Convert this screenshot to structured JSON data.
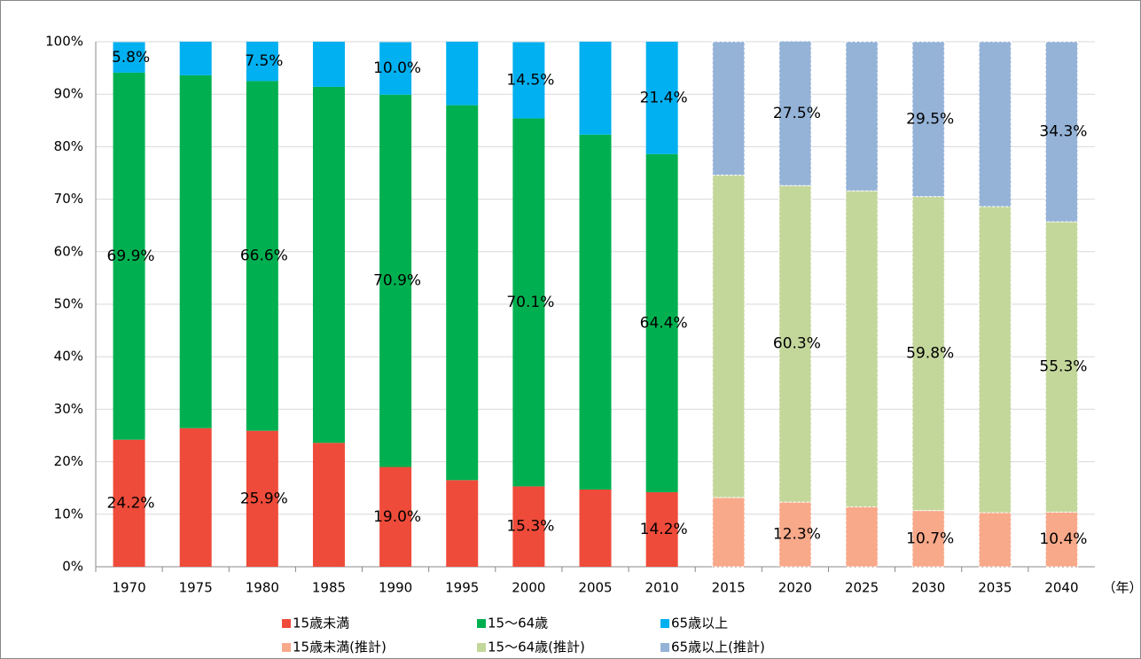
{
  "chart_data": {
    "type": "stacked_bar",
    "x_label": "（年）",
    "categories": [
      "1970",
      "1975",
      "1980",
      "1985",
      "1990",
      "1995",
      "2000",
      "2005",
      "2010",
      "2015",
      "2020",
      "2025",
      "2030",
      "2035",
      "2040"
    ],
    "ylim": [
      0,
      100
    ],
    "yticks": [
      {
        "value": 0,
        "label": "0%"
      },
      {
        "value": 10,
        "label": "10%"
      },
      {
        "value": 20,
        "label": "20%"
      },
      {
        "value": 30,
        "label": "30%"
      },
      {
        "value": 40,
        "label": "40%"
      },
      {
        "value": 50,
        "label": "50%"
      },
      {
        "value": 60,
        "label": "60%"
      },
      {
        "value": 70,
        "label": "70%"
      },
      {
        "value": 80,
        "label": "80%"
      },
      {
        "value": 90,
        "label": "90%"
      },
      {
        "value": 100,
        "label": "100%"
      }
    ],
    "series": [
      {
        "name": "15歳未満",
        "color": "#ef4b3a",
        "values": [
          24.2,
          26.4,
          25.9,
          23.6,
          19.0,
          16.5,
          15.3,
          14.7,
          14.2,
          null,
          null,
          null,
          null,
          null,
          null
        ],
        "value_labels": [
          "24.2%",
          null,
          "25.9%",
          null,
          "19.0%",
          null,
          "15.3%",
          null,
          "14.2%",
          null,
          null,
          null,
          null,
          null,
          null
        ]
      },
      {
        "name": "15～64歳",
        "color": "#00b050",
        "values": [
          69.9,
          67.2,
          66.6,
          67.8,
          70.9,
          71.4,
          70.1,
          67.6,
          64.4,
          null,
          null,
          null,
          null,
          null,
          null
        ],
        "value_labels": [
          "69.9%",
          null,
          "66.6%",
          null,
          "70.9%",
          null,
          "70.1%",
          null,
          "64.4%",
          null,
          null,
          null,
          null,
          null,
          null
        ]
      },
      {
        "name": "65歳以上",
        "color": "#00b0f0",
        "values": [
          5.8,
          6.4,
          7.5,
          8.6,
          10.0,
          12.1,
          14.5,
          17.7,
          21.4,
          null,
          null,
          null,
          null,
          null,
          null
        ],
        "value_labels": [
          "5.8%",
          null,
          "7.5%",
          null,
          "10.0%",
          null,
          "14.5%",
          null,
          "21.4%",
          null,
          null,
          null,
          null,
          null,
          null
        ]
      },
      {
        "name": "15歳未満(推計)",
        "color": "#f8a98a",
        "values": [
          null,
          null,
          null,
          null,
          null,
          null,
          null,
          null,
          null,
          13.2,
          12.3,
          11.4,
          10.7,
          10.3,
          10.4
        ],
        "value_labels": [
          null,
          null,
          null,
          null,
          null,
          null,
          null,
          null,
          null,
          null,
          "12.3%",
          null,
          "10.7%",
          null,
          "10.4%"
        ]
      },
      {
        "name": "15～64歳(推計)",
        "color": "#c4d79b",
        "values": [
          null,
          null,
          null,
          null,
          null,
          null,
          null,
          null,
          null,
          61.4,
          60.3,
          60.2,
          59.8,
          58.3,
          55.3
        ],
        "value_labels": [
          null,
          null,
          null,
          null,
          null,
          null,
          null,
          null,
          null,
          null,
          "60.3%",
          null,
          "59.8%",
          null,
          "55.3%"
        ]
      },
      {
        "name": "65歳以上(推計)",
        "color": "#95b3d7",
        "values": [
          null,
          null,
          null,
          null,
          null,
          null,
          null,
          null,
          null,
          25.4,
          27.5,
          28.4,
          29.5,
          31.4,
          34.3
        ],
        "value_labels": [
          null,
          null,
          null,
          null,
          null,
          null,
          null,
          null,
          null,
          null,
          "27.5%",
          null,
          "29.5%",
          null,
          "34.3%"
        ]
      }
    ],
    "grid": true
  }
}
